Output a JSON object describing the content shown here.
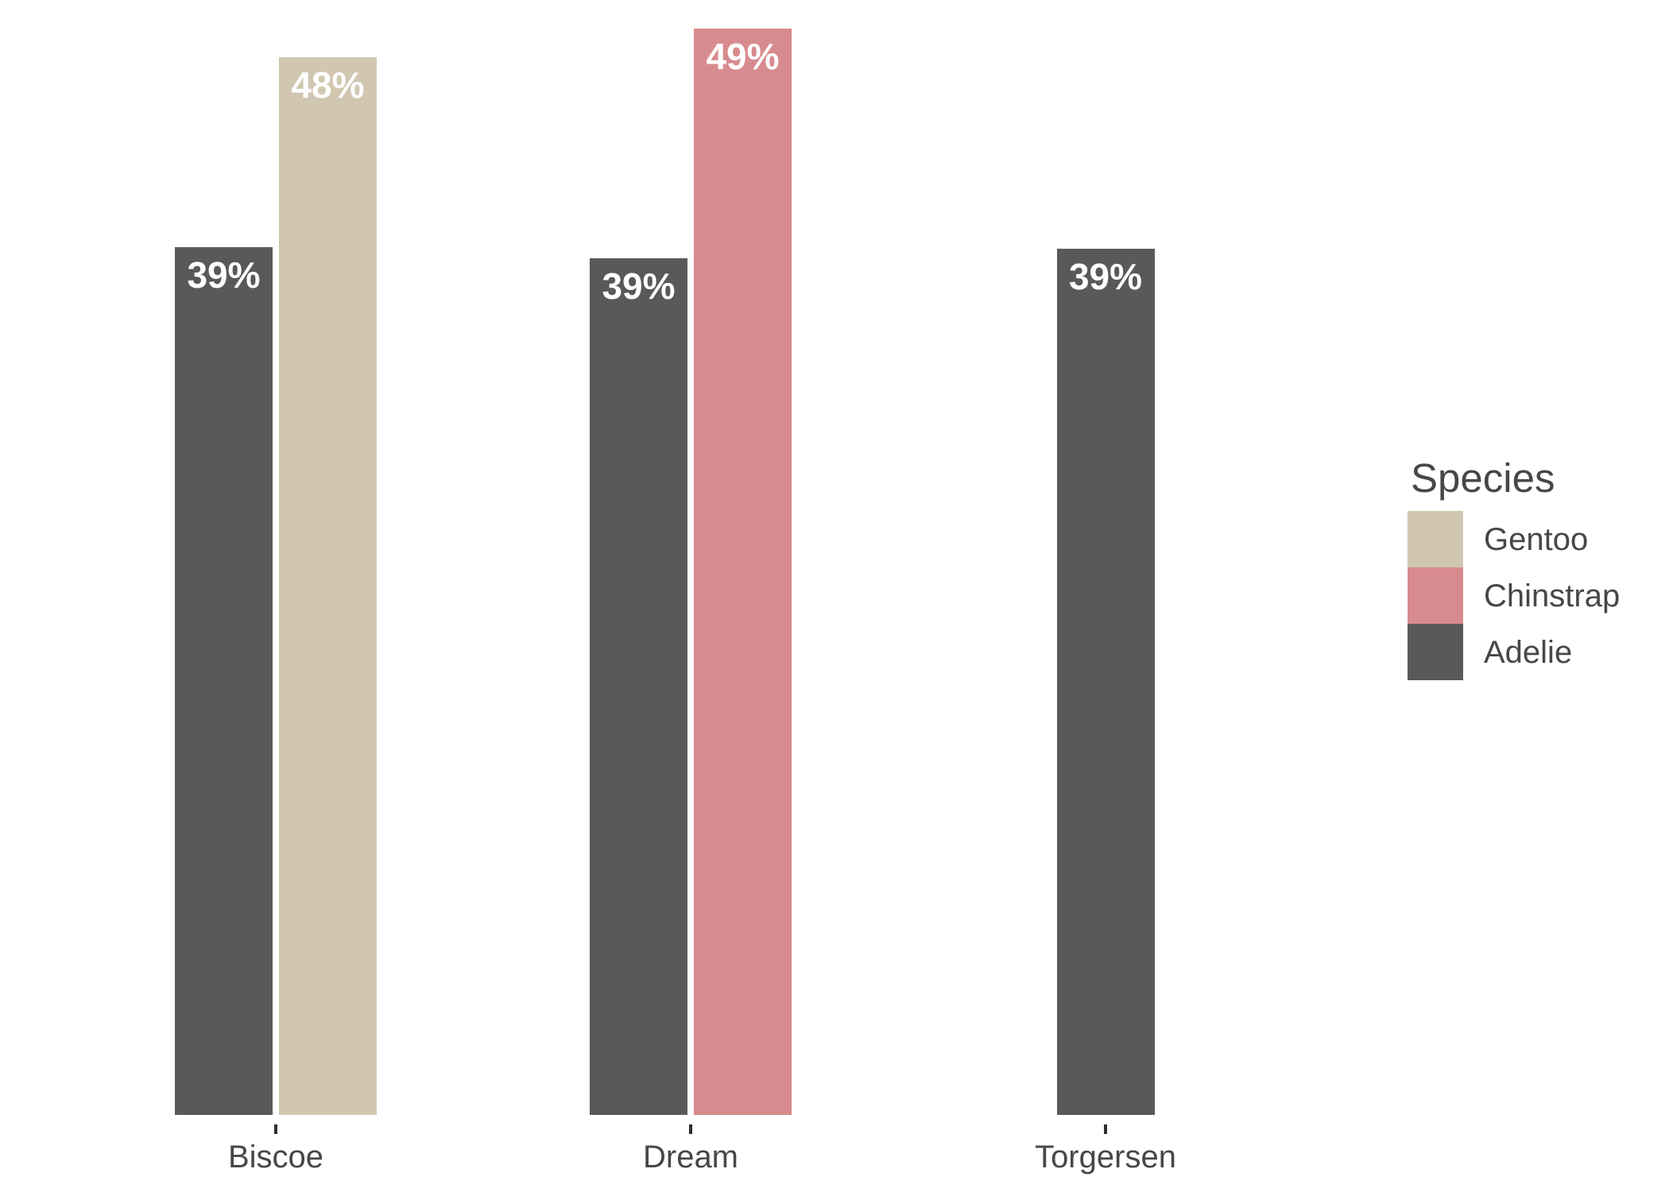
{
  "page": {
    "background": "#ffffff"
  },
  "chart_data": {
    "type": "bar",
    "title": "",
    "xlabel": "",
    "ylabel": "",
    "grid": false,
    "y_axis_visible": false,
    "ylim": [
      0,
      48.8
    ],
    "categories": [
      "Biscoe",
      "Dream",
      "Torgersen"
    ],
    "groups": [
      {
        "label": "Biscoe",
        "bars": [
          {
            "species": "Adelie",
            "value": 39.0,
            "label": "39%"
          },
          {
            "species": "Gentoo",
            "value": 47.5,
            "label": "48%"
          }
        ]
      },
      {
        "label": "Dream",
        "bars": [
          {
            "species": "Adelie",
            "value": 38.5,
            "label": "39%"
          },
          {
            "species": "Chinstrap",
            "value": 48.8,
            "label": "49%"
          }
        ]
      },
      {
        "label": "Torgersen",
        "bars": [
          {
            "species": "Adelie",
            "value": 38.9,
            "label": "39%"
          }
        ]
      }
    ],
    "colors": {
      "Adelie": "#59595b",
      "Gentoo": "#d1c7b1",
      "Chinstrap": "#d88b8e"
    },
    "legend": {
      "position": "right",
      "title": "Species",
      "entries": [
        {
          "label": "Gentoo",
          "color": "#d1c7b1"
        },
        {
          "label": "Chinstrap",
          "color": "#d88b8e"
        },
        {
          "label": "Adelie",
          "color": "#59595b"
        }
      ]
    },
    "bar_value_text_color": "#ffffff",
    "axis_text_color": "#474747",
    "tick_color": "#2e2e2e"
  }
}
